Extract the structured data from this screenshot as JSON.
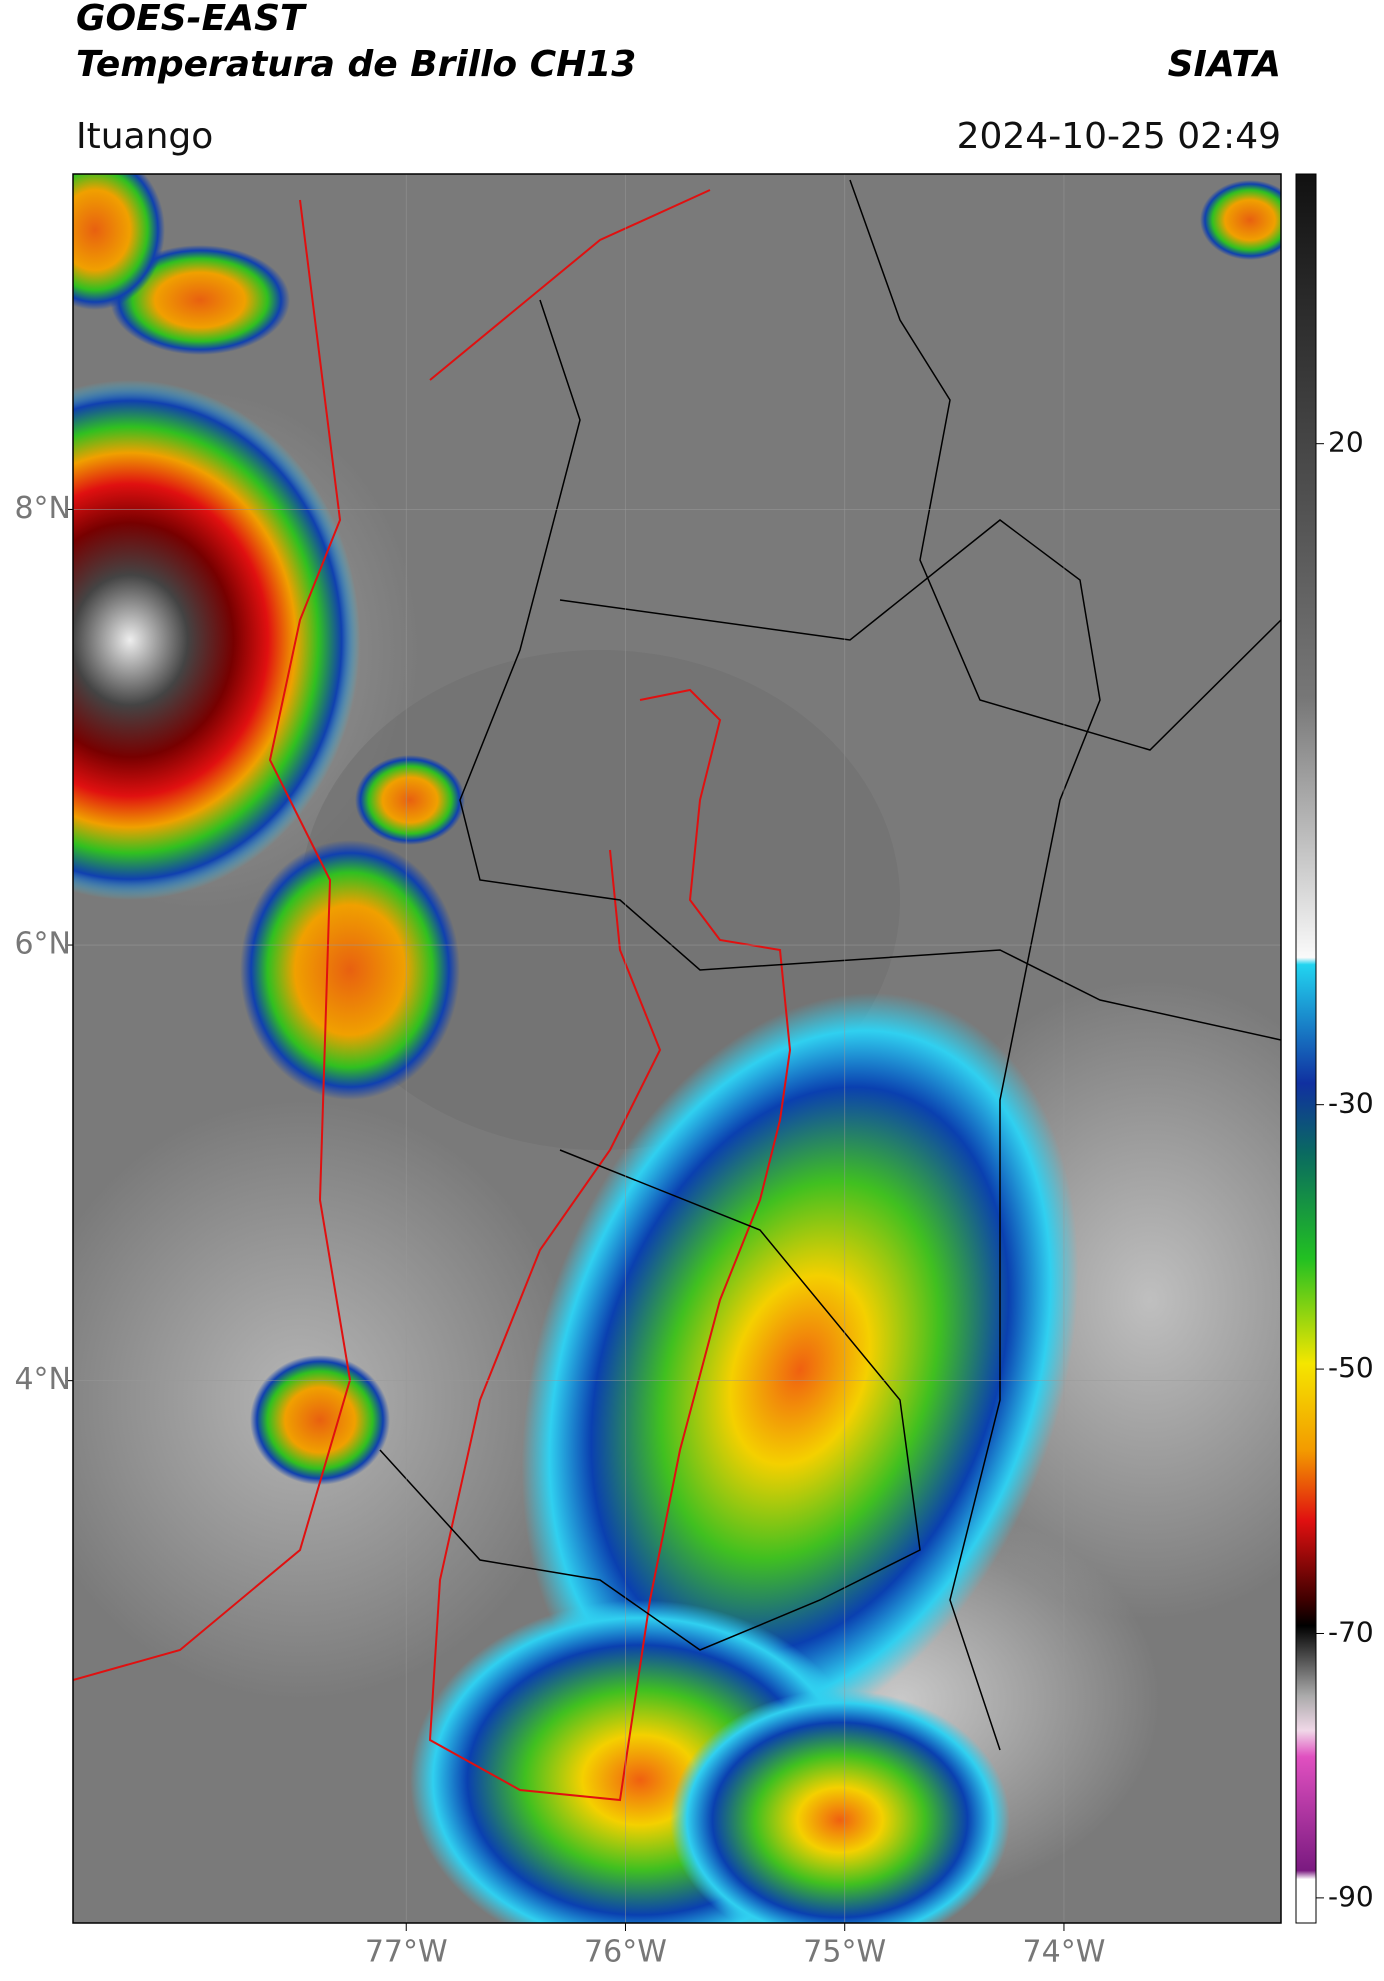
{
  "header": {
    "title": "GOES-EAST",
    "subtitle": "Temperatura de Brillo CH13",
    "source": "SIATA",
    "region": "Ituango",
    "datetime": "2024-10-25 02:49"
  },
  "map": {
    "xlim": [
      -78.52,
      -73.01
    ],
    "ylim": [
      1.51,
      9.54
    ],
    "xticks": [
      {
        "value": -77,
        "label": "77°W"
      },
      {
        "value": -76,
        "label": "76°W"
      },
      {
        "value": -75,
        "label": "75°W"
      },
      {
        "value": -74,
        "label": "74°W"
      }
    ],
    "yticks": [
      {
        "value": 8,
        "label": "8°N"
      },
      {
        "value": 6,
        "label": "6°N"
      },
      {
        "value": 4,
        "label": "4°N"
      }
    ]
  },
  "colorbar": {
    "lim": [
      -91.9,
      40.4
    ],
    "ticks": [
      20,
      -30,
      -50,
      -70,
      -90
    ]
  }
}
